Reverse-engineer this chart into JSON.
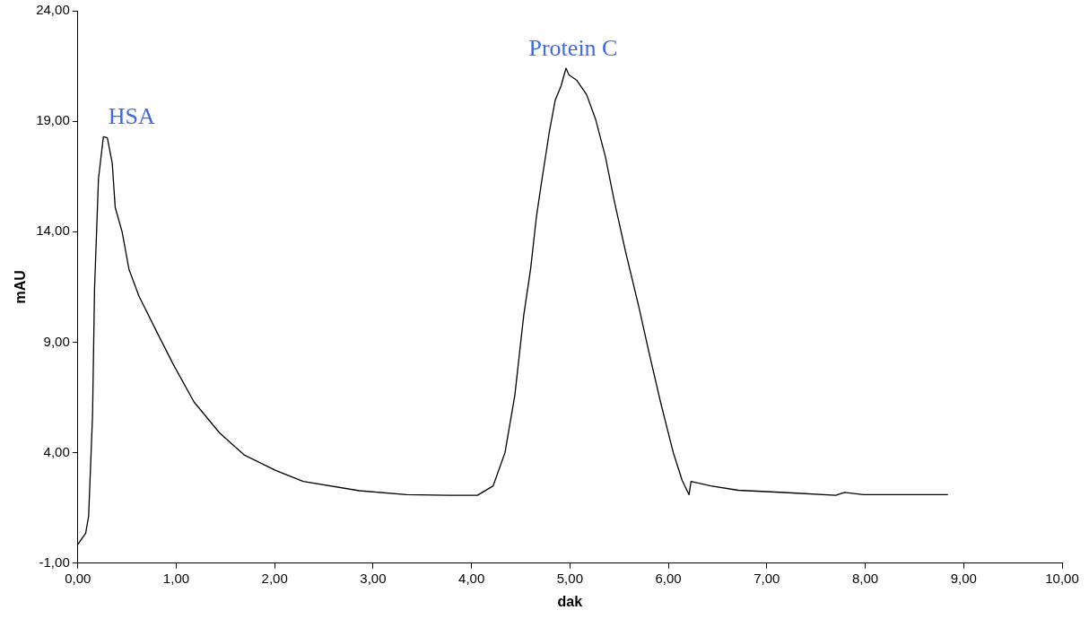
{
  "chart_data": {
    "type": "line",
    "xlabel": "dak",
    "ylabel": "mAU",
    "x": [
      0,
      0.08,
      0.11,
      0.15,
      0.17,
      0.21,
      0.26,
      0.3,
      0.35,
      0.38,
      0.45,
      0.52,
      0.62,
      0.81,
      0.97,
      1.18,
      1.44,
      1.69,
      2.01,
      2.29,
      2.86,
      3.34,
      3.77,
      4.06,
      4.22,
      4.34,
      4.44,
      4.53,
      4.6,
      4.66,
      4.71,
      4.79,
      4.85,
      4.91,
      4.96,
      4.99,
      5.07,
      5.17,
      5.26,
      5.36,
      5.45,
      5.57,
      5.7,
      5.8,
      5.92,
      6.05,
      6.14,
      6.21,
      6.23,
      6.43,
      6.71,
      7.18,
      7.7,
      7.79,
      7.98,
      8.84
    ],
    "series": [
      {
        "color": "#000000",
        "values": [
          -0.15,
          0.36,
          1.13,
          5.73,
          11.4,
          16.4,
          18.3,
          18.25,
          17.1,
          15.1,
          14.0,
          12.3,
          11.1,
          9.4,
          8.0,
          6.3,
          4.9,
          3.9,
          3.2,
          2.7,
          2.28,
          2.1,
          2.07,
          2.07,
          2.5,
          4.0,
          6.6,
          10.2,
          12.3,
          14.7,
          16.2,
          18.5,
          19.95,
          20.6,
          21.4,
          21.1,
          20.85,
          20.2,
          19.1,
          17.4,
          15.4,
          13.0,
          10.6,
          8.6,
          6.3,
          4.0,
          2.75,
          2.1,
          2.7,
          2.5,
          2.3,
          2.2,
          2.07,
          2.2,
          2.1,
          2.1
        ]
      }
    ],
    "xlim": [
      0,
      10
    ],
    "xticks": [
      {
        "value": 0,
        "label": "0,00"
      },
      {
        "value": 1,
        "label": "1,00"
      },
      {
        "value": 2,
        "label": "2,00"
      },
      {
        "value": 3,
        "label": "3,00"
      },
      {
        "value": 4,
        "label": "4,00"
      },
      {
        "value": 5,
        "label": "5,00"
      },
      {
        "value": 6,
        "label": "6,00"
      },
      {
        "value": 7,
        "label": "7,00"
      },
      {
        "value": 8,
        "label": "8,00"
      },
      {
        "value": 9,
        "label": "9,00"
      },
      {
        "value": 10,
        "label": "10,00"
      }
    ],
    "ylim": [
      -1,
      24
    ],
    "yticks": [
      {
        "value": -1,
        "label": "-1,00"
      },
      {
        "value": 4,
        "label": "4,00"
      },
      {
        "value": 9,
        "label": "9,00"
      },
      {
        "value": 14,
        "label": "14,00"
      },
      {
        "value": 19,
        "label": "19,00"
      },
      {
        "value": 24,
        "label": "24,00"
      }
    ],
    "annotations": [
      {
        "text": "HSA",
        "x": 0.26,
        "y": 18.3
      },
      {
        "text": "Protein C",
        "x": 4.96,
        "y": 21.4
      }
    ],
    "grid": false,
    "legend": false,
    "marker": "none",
    "line_style": "solid"
  }
}
